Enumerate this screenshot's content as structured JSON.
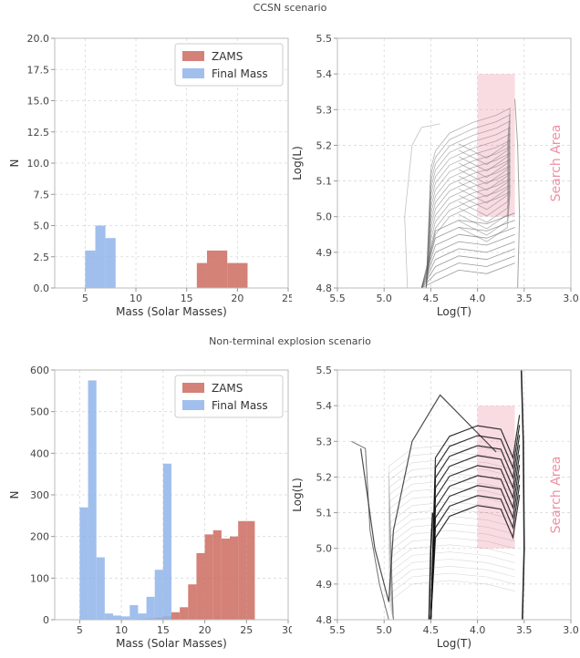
{
  "sections": [
    {
      "title": "CCSN scenario"
    },
    {
      "title": "Non-terminal explosion scenario"
    }
  ],
  "chart_data": [
    {
      "id": "ccsn-hist",
      "type": "bar",
      "xlabel": "Mass (Solar Masses)",
      "ylabel": "N",
      "xlim": [
        2,
        25
      ],
      "ylim": [
        0,
        20
      ],
      "xticks": [
        5,
        10,
        15,
        20,
        25
      ],
      "yticks": [
        0.0,
        2.5,
        5.0,
        7.5,
        10.0,
        12.5,
        15.0,
        17.5,
        20.0
      ],
      "ytick_decimals": 1,
      "grid": true,
      "legend": "top-right",
      "series": [
        {
          "name": "ZAMS",
          "color": "#cd6b5f",
          "bins": [
            [
              16,
              17,
              2
            ],
            [
              17,
              19,
              3
            ],
            [
              19,
              21,
              2
            ]
          ]
        },
        {
          "name": "Final Mass",
          "color": "#8fb4ea",
          "bins": [
            [
              5,
              6,
              3
            ],
            [
              6,
              7,
              5
            ],
            [
              7,
              8,
              4
            ]
          ]
        }
      ]
    },
    {
      "id": "ccsn-hr",
      "type": "line",
      "xlabel": "Log(T)",
      "ylabel": "Log(L)",
      "xlim": [
        5.5,
        3.0
      ],
      "ylim": [
        4.8,
        5.5
      ],
      "xticks": [
        5.5,
        5.0,
        4.5,
        4.0,
        3.5,
        3.0
      ],
      "yticks": [
        4.8,
        4.9,
        5.0,
        5.1,
        5.2,
        5.3,
        5.4,
        5.5
      ],
      "grid": true,
      "search_area": {
        "label": "Search Area",
        "logT": [
          3.6,
          4.0
        ],
        "logL": [
          5.0,
          5.4
        ],
        "color": "#e8758d"
      }
    },
    {
      "id": "nte-hist",
      "type": "bar",
      "xlabel": "Mass (Solar Masses)",
      "ylabel": "N",
      "xlim": [
        2,
        30
      ],
      "ylim": [
        0,
        600
      ],
      "xticks": [
        5,
        10,
        15,
        20,
        25,
        30
      ],
      "yticks": [
        0,
        100,
        200,
        300,
        400,
        500,
        600
      ],
      "ytick_decimals": 0,
      "grid": true,
      "legend": "top-right",
      "series": [
        {
          "name": "ZAMS",
          "color": "#cd6b5f",
          "bins": [
            [
              12,
              13,
              2
            ],
            [
              13,
              14,
              3
            ],
            [
              14,
              15,
              5
            ],
            [
              15,
              16,
              8
            ],
            [
              16,
              17,
              18
            ],
            [
              17,
              18,
              30
            ],
            [
              18,
              19,
              85
            ],
            [
              19,
              20,
              160
            ],
            [
              20,
              21,
              205
            ],
            [
              21,
              22,
              215
            ],
            [
              22,
              23,
              195
            ],
            [
              23,
              24,
              200
            ],
            [
              24,
              25,
              237
            ],
            [
              25,
              26,
              237
            ]
          ]
        },
        {
          "name": "Final Mass",
          "color": "#8fb4ea",
          "bins": [
            [
              5,
              6,
              270
            ],
            [
              6,
              7,
              575
            ],
            [
              7,
              8,
              150
            ],
            [
              8,
              9,
              15
            ],
            [
              9,
              10,
              10
            ],
            [
              10,
              11,
              8
            ],
            [
              11,
              12,
              35
            ],
            [
              12,
              13,
              15
            ],
            [
              13,
              14,
              55
            ],
            [
              14,
              15,
              120
            ],
            [
              15,
              16,
              375
            ]
          ]
        }
      ]
    },
    {
      "id": "nte-hr",
      "type": "line",
      "xlabel": "Log(T)",
      "ylabel": "Log(L)",
      "xlim": [
        5.5,
        3.0
      ],
      "ylim": [
        4.8,
        5.5
      ],
      "xticks": [
        5.5,
        5.0,
        4.5,
        4.0,
        3.5,
        3.0
      ],
      "yticks": [
        4.8,
        4.9,
        5.0,
        5.1,
        5.2,
        5.3,
        5.4,
        5.5
      ],
      "grid": true,
      "search_area": {
        "label": "Search Area",
        "logT": [
          3.6,
          4.0
        ],
        "logL": [
          5.0,
          5.4
        ],
        "color": "#e8758d"
      }
    }
  ]
}
